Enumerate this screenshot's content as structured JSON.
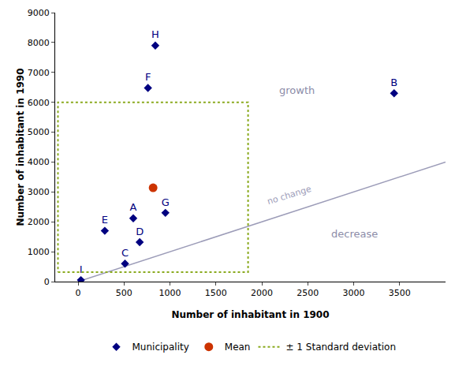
{
  "chart_data": {
    "type": "scatter",
    "x_label": "Number of inhabitant in 1900",
    "y_label": "Number of inhabitant in 1990",
    "xlim": [
      -250,
      4000
    ],
    "ylim": [
      0,
      9000
    ],
    "xticks": [
      0,
      500,
      1000,
      1500,
      2000,
      2500,
      3000,
      3500
    ],
    "yticks": [
      0,
      1000,
      2000,
      3000,
      4000,
      5000,
      6000,
      7000,
      8000,
      9000
    ],
    "grid": false,
    "legend": "bottom",
    "series": [
      {
        "name": "Municipality",
        "type": "scatter",
        "color": "#000080",
        "marker": "diamond",
        "labels": [
          "A",
          "B",
          "C",
          "D",
          "E",
          "F",
          "G",
          "H",
          "I"
        ],
        "x": [
          600,
          3440,
          510,
          670,
          290,
          760,
          950,
          840,
          30
        ],
        "y": [
          2120,
          6300,
          600,
          1320,
          1700,
          6480,
          2300,
          7900,
          50
        ]
      },
      {
        "name": "Mean",
        "type": "scatter",
        "color": "#cc3300",
        "marker": "circle",
        "x": [
          816
        ],
        "y": [
          3140
        ]
      },
      {
        "name": "± 1 Standard deviation",
        "type": "rectangle",
        "color": "#8aaa1e",
        "line_style": "dot",
        "x": [
          -220,
          1850
        ],
        "y": [
          320,
          6000
        ]
      }
    ],
    "reference_line": {
      "label": "no change",
      "x": [
        0,
        4000
      ],
      "y": [
        0,
        4000
      ],
      "color": "#9c9cb8"
    },
    "annotations": [
      {
        "text": "growth",
        "color": "#8c8ca8"
      },
      {
        "text": "decrease",
        "color": "#8c8ca8"
      }
    ]
  }
}
